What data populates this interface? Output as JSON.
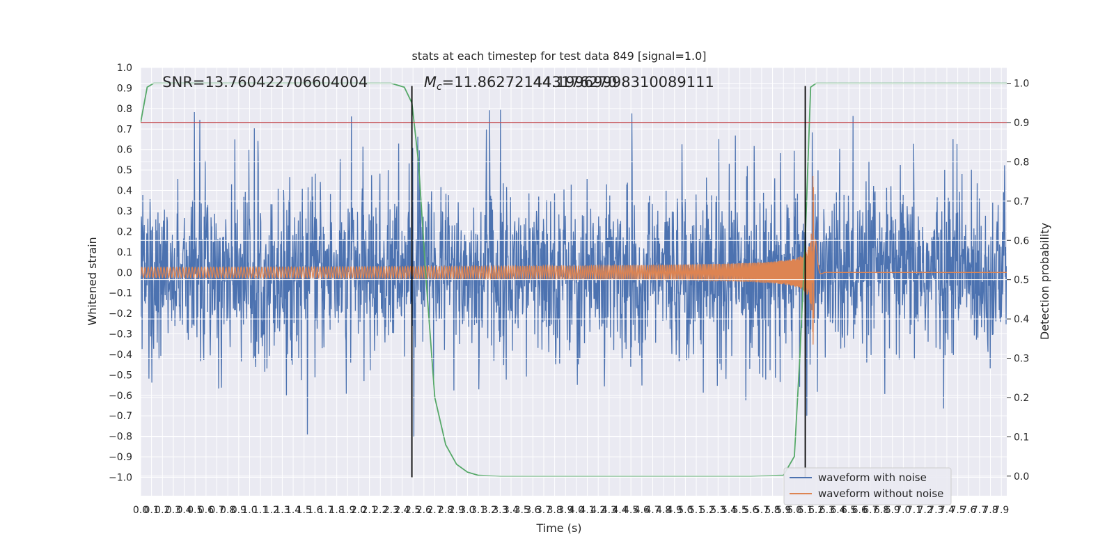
{
  "chart_data": {
    "type": "line",
    "title": "stats at each timestep for test data 849 [signal=1.0]",
    "xlabel": "Time (s)",
    "ylabel": "Whitened strain",
    "ylabel_right": "Detection probability",
    "xlim": [
      0.0,
      7.95
    ],
    "ylim": [
      -1.09,
      1.0
    ],
    "ylim_right": [
      -0.05,
      1.04
    ],
    "x_ticks": [
      "0.0",
      "0.1",
      "0.2",
      "0.3",
      "0.4",
      "0.5",
      "0.6",
      "0.7",
      "0.8",
      "0.9",
      "1.0",
      "1.1",
      "1.2",
      "1.3",
      "1.4",
      "1.5",
      "1.6",
      "1.7",
      "1.8",
      "1.9",
      "2.0",
      "2.1",
      "2.2",
      "2.3",
      "2.4",
      "2.5",
      "2.6",
      "2.7",
      "2.8",
      "2.9",
      "3.0",
      "3.1",
      "3.2",
      "3.3",
      "3.4",
      "3.5",
      "3.6",
      "3.7",
      "3.8",
      "3.9",
      "4.0",
      "4.1",
      "4.2",
      "4.3",
      "4.4",
      "4.5",
      "4.6",
      "4.7",
      "4.8",
      "4.9",
      "5.0",
      "5.1",
      "5.2",
      "5.3",
      "5.4",
      "5.5",
      "5.6",
      "5.7",
      "5.8",
      "5.9",
      "6.0",
      "6.1",
      "6.2",
      "6.3",
      "6.4",
      "6.5",
      "6.6",
      "6.7",
      "6.8",
      "6.9",
      "7.0",
      "7.1",
      "7.2",
      "7.3",
      "7.4",
      "7.5",
      "7.6",
      "7.7",
      "7.8",
      "7.9"
    ],
    "y_ticks": [
      "1.0",
      "0.9",
      "0.8",
      "0.7",
      "0.6",
      "0.5",
      "0.4",
      "0.3",
      "0.2",
      "0.1",
      "0.0",
      "−0.1",
      "−0.2",
      "−0.3",
      "−0.4",
      "−0.5",
      "−0.6",
      "−0.7",
      "−0.8",
      "−0.9",
      "−1.0"
    ],
    "y_ticks_right": [
      "1.0",
      "0.9",
      "0.8",
      "0.7",
      "0.6",
      "0.5",
      "0.4",
      "0.3",
      "0.2",
      "0.1",
      "0.0"
    ],
    "annotations": [
      {
        "text": "SNR=13.760422706604004",
        "x": 0.2,
        "y": 0.935
      },
      {
        "text_prefix": "M",
        "text_sub": "c",
        "text_rest": "=11.862721443176270",
        "x": 2.6,
        "y": 0.935
      },
      {
        "text": "44.19969998310089111",
        "x": 3.6,
        "y": 0.935
      }
    ],
    "threshold_line": {
      "y_right": 0.9,
      "color": "#c44e52"
    },
    "vertical_lines": [
      {
        "x": 2.49,
        "color": "#000000",
        "y_range": [
          -1.0,
          0.91
        ]
      },
      {
        "x": 6.1,
        "color": "#000000",
        "y_range": [
          -1.0,
          0.91
        ]
      }
    ],
    "series": [
      {
        "name": "waveform with noise",
        "color": "#4c72b0",
        "axis": "left",
        "kind": "noise",
        "envelope": 0.45,
        "peak": 0.84,
        "trough": -1.0
      },
      {
        "name": "waveform without noise",
        "color": "#dd8452",
        "axis": "left",
        "kind": "chirp",
        "merger_time": 6.18,
        "amp_start": 0.025,
        "amp_peak": 0.5
      },
      {
        "name": "detection probability",
        "color": "#55a868",
        "axis": "right",
        "kind": "step",
        "points": [
          [
            0.0,
            0.9
          ],
          [
            0.06,
            0.99
          ],
          [
            0.12,
            1.0
          ],
          [
            2.3,
            1.0
          ],
          [
            2.42,
            0.99
          ],
          [
            2.49,
            0.95
          ],
          [
            2.55,
            0.8
          ],
          [
            2.62,
            0.5
          ],
          [
            2.7,
            0.2
          ],
          [
            2.8,
            0.08
          ],
          [
            2.9,
            0.03
          ],
          [
            3.0,
            0.01
          ],
          [
            3.1,
            0.002
          ],
          [
            3.3,
            0.0
          ],
          [
            5.6,
            0.0
          ],
          [
            5.9,
            0.002
          ],
          [
            6.0,
            0.05
          ],
          [
            6.05,
            0.3
          ],
          [
            6.1,
            0.6
          ],
          [
            6.15,
            0.99
          ],
          [
            6.2,
            1.0
          ],
          [
            7.95,
            1.0
          ]
        ]
      }
    ],
    "legend": {
      "position": "bottom-right",
      "entries": [
        "waveform with noise",
        "waveform without noise"
      ]
    }
  },
  "colors": {
    "plot_bg": "#eaeaf2",
    "grid": "#ffffff"
  }
}
